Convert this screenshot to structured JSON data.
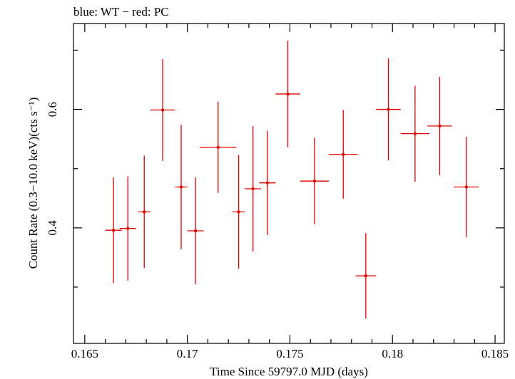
{
  "chart_data": {
    "type": "scatter",
    "title": "blue: WT − red: PC",
    "xlabel": "Time Since 59797.0 MJD (days)",
    "ylabel": "Count Rate (0.3−10.0 keV)(cts s⁻¹)",
    "xlim": [
      0.16445,
      0.18545
    ],
    "ylim": [
      0.205,
      0.745
    ],
    "x_ticks": [
      0.165,
      0.17,
      0.175,
      0.18,
      0.185
    ],
    "x_tick_labels": [
      "0.165",
      "0.17",
      "0.175",
      "0.18",
      "0.185"
    ],
    "y_ticks": [
      0.4,
      0.6
    ],
    "y_tick_labels": [
      "0.4",
      "0.6"
    ],
    "grid": false,
    "series": [
      {
        "color": "#e00000",
        "points": [
          {
            "x": 0.1664,
            "xerr": 0.0004,
            "y": 0.396,
            "yerr": 0.089
          },
          {
            "x": 0.1671,
            "xerr": 0.0004,
            "y": 0.399,
            "yerr": 0.088
          },
          {
            "x": 0.1679,
            "xerr": 0.0003,
            "y": 0.427,
            "yerr": 0.095
          },
          {
            "x": 0.1688,
            "xerr": 0.0006,
            "y": 0.599,
            "yerr": 0.086
          },
          {
            "x": 0.1697,
            "xerr": 0.0003,
            "y": 0.469,
            "yerr": 0.105
          },
          {
            "x": 0.1704,
            "xerr": 0.0004,
            "y": 0.395,
            "yerr": 0.09
          },
          {
            "x": 0.1715,
            "xerr": 0.0009,
            "y": 0.536,
            "yerr": 0.077
          },
          {
            "x": 0.1725,
            "xerr": 0.0003,
            "y": 0.427,
            "yerr": 0.096
          },
          {
            "x": 0.1732,
            "xerr": 0.0004,
            "y": 0.466,
            "yerr": 0.106
          },
          {
            "x": 0.1739,
            "xerr": 0.0004,
            "y": 0.476,
            "yerr": 0.088
          },
          {
            "x": 0.1749,
            "xerr": 0.0006,
            "y": 0.626,
            "yerr": 0.09
          },
          {
            "x": 0.1762,
            "xerr": 0.0007,
            "y": 0.479,
            "yerr": 0.073
          },
          {
            "x": 0.1776,
            "xerr": 0.0007,
            "y": 0.524,
            "yerr": 0.075
          },
          {
            "x": 0.1787,
            "xerr": 0.0005,
            "y": 0.319,
            "yerr": 0.072
          },
          {
            "x": 0.1798,
            "xerr": 0.0006,
            "y": 0.6,
            "yerr": 0.086
          },
          {
            "x": 0.1811,
            "xerr": 0.0007,
            "y": 0.559,
            "yerr": 0.081
          },
          {
            "x": 0.1823,
            "xerr": 0.0006,
            "y": 0.572,
            "yerr": 0.083
          },
          {
            "x": 0.1836,
            "xerr": 0.0006,
            "y": 0.469,
            "yerr": 0.085
          }
        ]
      }
    ]
  }
}
